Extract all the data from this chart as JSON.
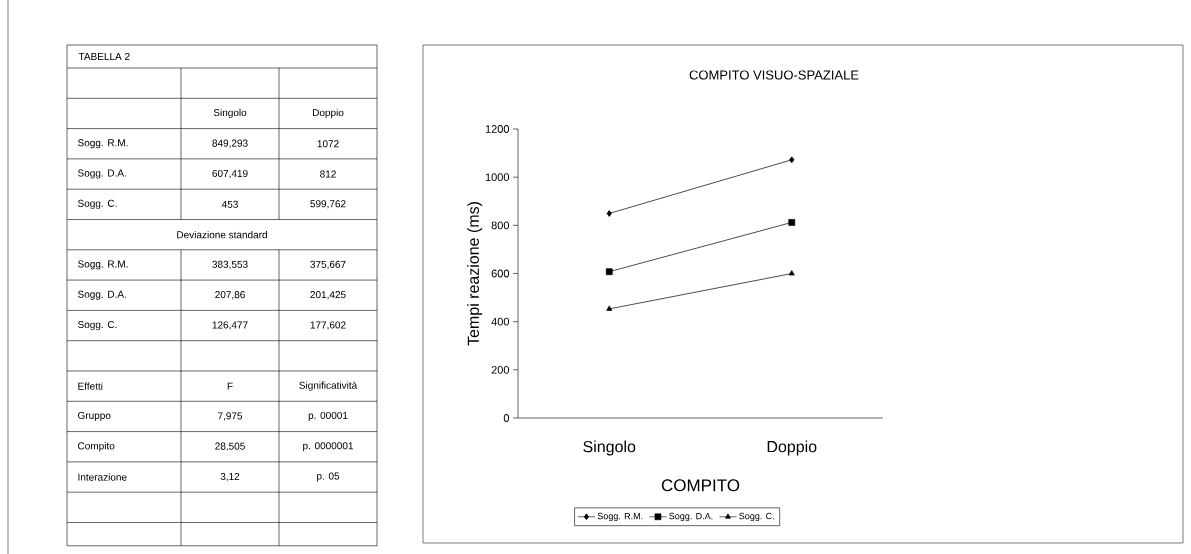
{
  "chart_data": [
    {
      "type": "other",
      "title": "TABELLA 2",
      "annotations": [
        "Singolo",
        "Doppio",
        "Sogg. R.M.",
        "849,293",
        "1072",
        "Sogg. D.A.",
        "607,419",
        "812",
        "Sogg. C.",
        "453",
        "599,762",
        "Deviazione standard",
        "Sogg. R.M.",
        "383,553",
        "375,667",
        "Sogg. D.A.",
        "207,86",
        "201,425",
        "Sogg. C.",
        "126,477",
        "177,602",
        "Effetti",
        "F",
        "Significatività",
        "Gruppo",
        "7,975",
        "p. 00001",
        "Compito",
        "28,505",
        "p. 0000001",
        "Interazione",
        "3,12",
        "p. 05"
      ]
    },
    {
      "type": "line",
      "title": "COMPITO VISUO-SPAZIALE",
      "xlabel": "COMPITO",
      "ylabel": "Tempi reazione (ms)",
      "categories": [
        "Singolo",
        "Doppio"
      ],
      "series": [
        {
          "name": "Sogg. R.M.",
          "color": "#000000",
          "marker": "diamond",
          "values": [
            849.293,
            1072
          ]
        },
        {
          "name": "Sogg. D.A.",
          "color": "#000000",
          "marker": "square",
          "values": [
            607.419,
            812
          ]
        },
        {
          "name": "Sogg. C.",
          "color": "#000000",
          "marker": "triangle",
          "values": [
            453,
            599.762
          ]
        }
      ],
      "ylim": [
        0,
        1200
      ],
      "yticks": [
        0,
        200,
        400,
        600,
        800,
        1000,
        1200
      ],
      "legend": "bottom",
      "line_style": "solid"
    }
  ]
}
